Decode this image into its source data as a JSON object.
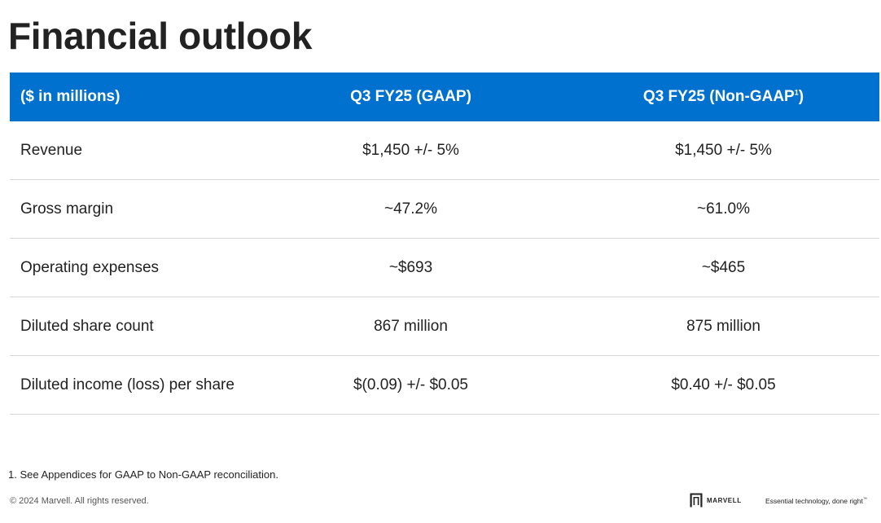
{
  "slide": {
    "title": "Financial outlook"
  },
  "table": {
    "headers": {
      "label": "($ in millions)",
      "gaap": "Q3 FY25 (GAAP)",
      "nongaap": "Q3 FY25 (Non-GAAP",
      "nongaap_sup": "1",
      "nongaap_close": ")"
    },
    "rows": [
      {
        "label": "Revenue",
        "gaap": "$1,450 +/- 5%",
        "nongaap": "$1,450 +/- 5%"
      },
      {
        "label": "Gross margin",
        "gaap": "~47.2%",
        "nongaap": "~61.0%"
      },
      {
        "label": "Operating expenses",
        "gaap": "~$693",
        "nongaap": "~$465"
      },
      {
        "label": "Diluted share count",
        "gaap": "867 million",
        "nongaap": "875 million"
      },
      {
        "label": "Diluted income (loss) per share",
        "gaap": "$(0.09) +/- $0.05",
        "nongaap": "$0.40 +/- $0.05"
      }
    ]
  },
  "footer": {
    "footnote": "1. See Appendices for GAAP to Non-GAAP reconciliation.",
    "copyright": "© 2024 Marvell. All rights reserved.",
    "brand_name": "MARVELL",
    "brand_icon": "marvell-logo-icon",
    "tagline": "Essential technology, done right",
    "tagline_tm": "™"
  },
  "colors": {
    "header_bg": "#0071ce",
    "header_text": "#ffffff",
    "row_divider": "#d6d6d6"
  }
}
